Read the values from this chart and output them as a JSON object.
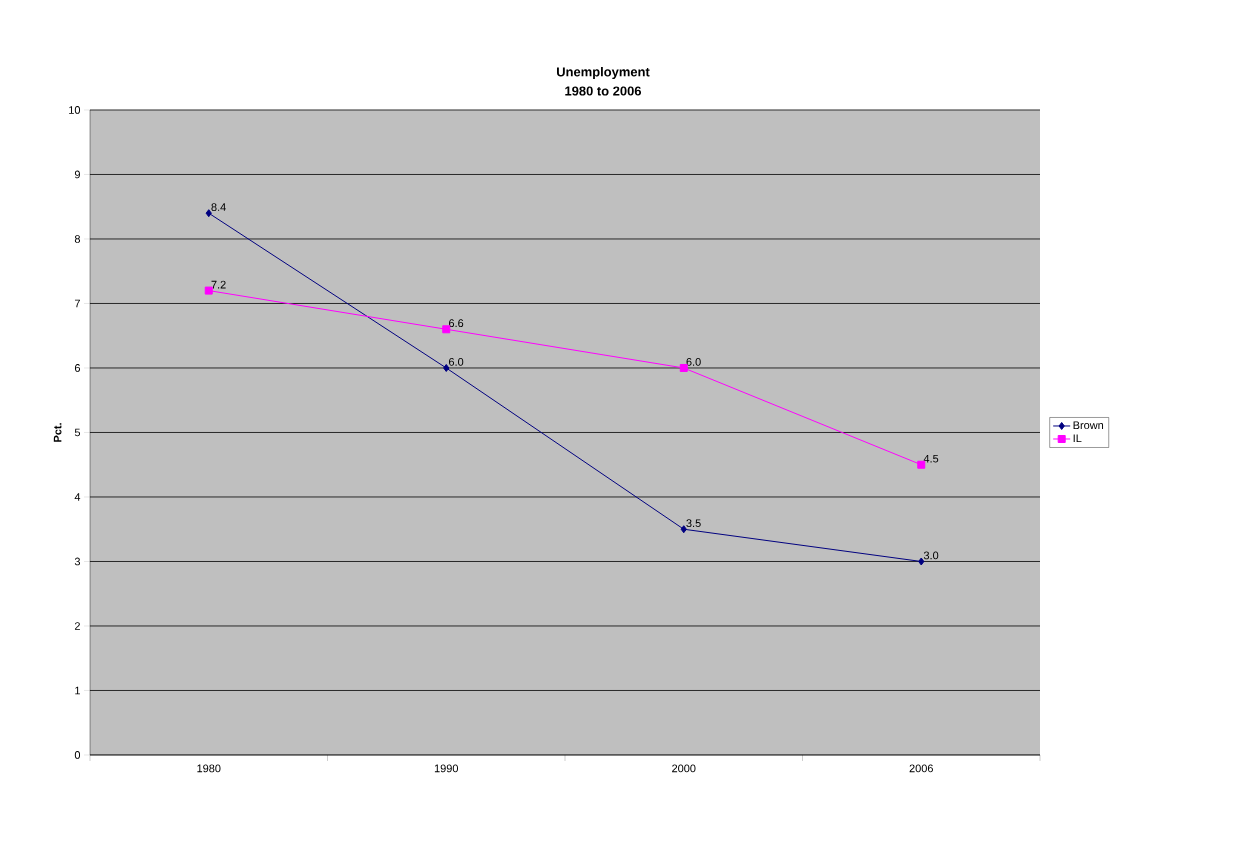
{
  "chart_data": {
    "type": "line",
    "title": "Unemployment",
    "subtitle": "1980 to 2006",
    "ylabel": "Pct.",
    "categories": [
      "1980",
      "1990",
      "2000",
      "2006"
    ],
    "series": [
      {
        "name": "Brown",
        "color": "#000080",
        "marker": "diamond",
        "values": [
          8.4,
          6.0,
          3.5,
          3.0
        ],
        "value_labels": [
          "8.4",
          "6.0",
          "3.5",
          "3.0"
        ]
      },
      {
        "name": "IL",
        "color": "#ff00ff",
        "marker": "square",
        "values": [
          7.2,
          6.6,
          6.0,
          4.5
        ],
        "value_labels": [
          "7.2",
          "6.6",
          "6.0",
          "4.5"
        ]
      }
    ],
    "ylim": [
      0,
      10
    ],
    "yticks": [
      0,
      1,
      2,
      3,
      4,
      5,
      6,
      7,
      8,
      9,
      10
    ],
    "grid": "y",
    "legend": "right"
  }
}
